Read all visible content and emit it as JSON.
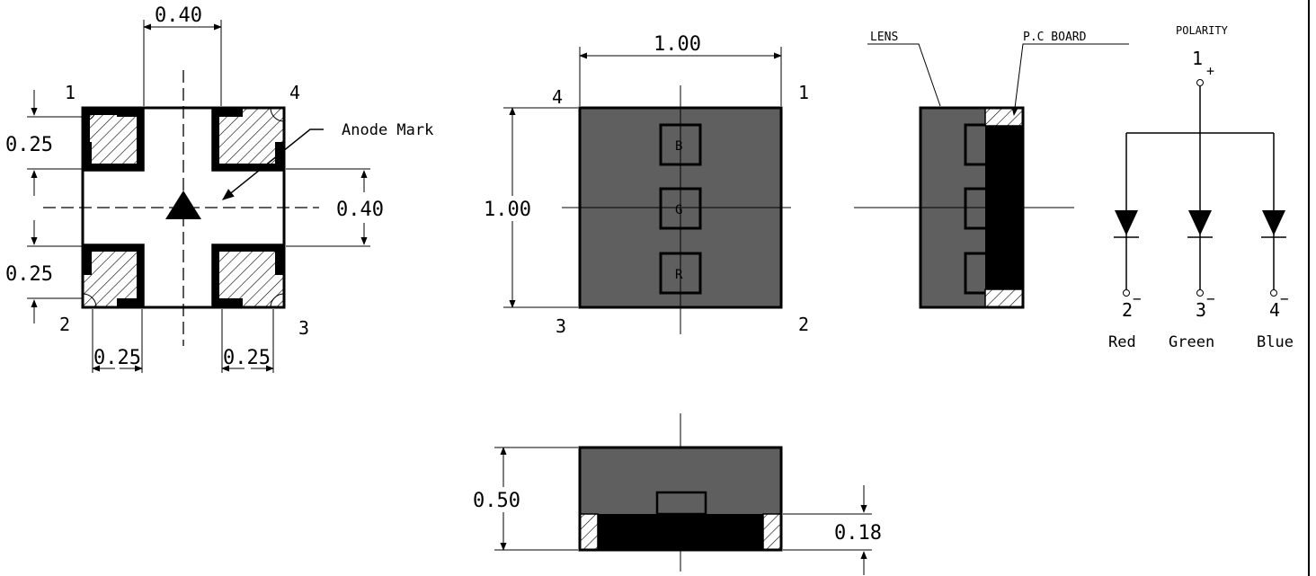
{
  "bottom_view": {
    "dim_top": "0.40",
    "dim_left_top": "0.25",
    "dim_left_bottom": "0.25",
    "dim_right": "0.40",
    "dim_bottom_left": "0.25",
    "dim_bottom_right": "0.25",
    "pin_tl": "1",
    "pin_tr": "4",
    "pin_bl": "2",
    "pin_br": "3",
    "anode_label": "Anode Mark"
  },
  "top_view": {
    "dim_width": "1.00",
    "dim_height": "1.00",
    "pin_tl": "4",
    "pin_tr": "1",
    "pin_bl": "3",
    "pin_br": "2",
    "chip_b": "B",
    "chip_g": "G",
    "chip_r": "R"
  },
  "side_view": {
    "lens_label": "LENS",
    "board_label": "P.C BOARD"
  },
  "polarity": {
    "title": "POLARITY",
    "pin_common": "1",
    "common_sign": "+",
    "pin_red": "2",
    "pin_green": "3",
    "pin_blue": "4",
    "minus_sign": "−",
    "red": "Red",
    "green": "Green",
    "blue": "Blue"
  },
  "front_view": {
    "dim_height": "0.50",
    "dim_board": "0.18"
  },
  "colors": {
    "body": "#5f5f5f",
    "board": "#000000"
  }
}
